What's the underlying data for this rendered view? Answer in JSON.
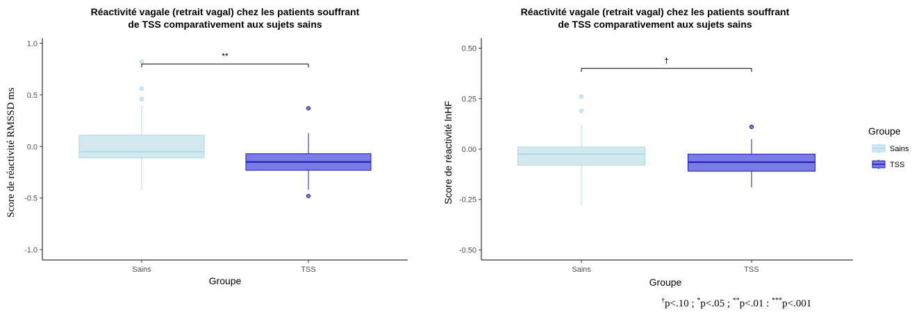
{
  "chart_data": [
    {
      "type": "box",
      "title_line1": "Réactivité vagale (retrait vagal) chez les patients souffrant",
      "title_line2": "de TSS comparativement aux sujets sains",
      "xlabel": "Groupe",
      "ylabel": "Score de réactivité RMSSD ms",
      "ylim": [
        -1.1,
        1.05
      ],
      "yticks": [
        -1.0,
        -0.5,
        0.0,
        0.5,
        1.0
      ],
      "ytick_labels": [
        "-1.0",
        "-0.5",
        "0.0",
        "0.5",
        "1.0"
      ],
      "categories": [
        "Sains",
        "TSS"
      ],
      "boxes": [
        {
          "group": "Sains",
          "whisker_low": -0.42,
          "q1": -0.11,
          "median": -0.05,
          "q3": 0.11,
          "whisker_high": 0.4,
          "outliers": [
            0.46,
            0.56,
            0.82
          ]
        },
        {
          "group": "TSS",
          "whisker_low": -0.42,
          "q1": -0.23,
          "median": -0.15,
          "q3": -0.07,
          "whisker_high": 0.13,
          "outliers": [
            0.37,
            -0.48
          ]
        }
      ],
      "significance": {
        "y": 0.8,
        "label": "**"
      }
    },
    {
      "type": "box",
      "title_line1": "Réactivité vagale (retrait vagal) chez les patients souffrant",
      "title_line2": "de TSS comparativement aux sujets sains",
      "xlabel": "Groupe",
      "ylabel": "Score de réactivité lnHF",
      "ylim": [
        -0.55,
        0.55
      ],
      "yticks": [
        -0.5,
        -0.25,
        0.0,
        0.25,
        0.5
      ],
      "ytick_labels": [
        "-0.50",
        "-0.25",
        "0.00",
        "0.25",
        "0.50"
      ],
      "categories": [
        "Sains",
        "TSS"
      ],
      "boxes": [
        {
          "group": "Sains",
          "whisker_low": -0.28,
          "q1": -0.08,
          "median": -0.025,
          "q3": 0.01,
          "whisker_high": 0.12,
          "outliers": [
            0.19,
            0.26
          ]
        },
        {
          "group": "TSS",
          "whisker_low": -0.19,
          "q1": -0.11,
          "median": -0.065,
          "q3": -0.025,
          "whisker_high": 0.05,
          "outliers": [
            0.11
          ]
        }
      ],
      "significance": {
        "y": 0.4,
        "label": "†"
      }
    }
  ],
  "legend": {
    "title": "Groupe",
    "items": [
      {
        "label": "Sains",
        "fill": "#d3e9f0",
        "stroke": "#add8e6"
      },
      {
        "label": "TSS",
        "fill": "#7b7be6",
        "stroke": "#1a1ab3"
      }
    ]
  },
  "colors": {
    "sains_fill": "#d3e9f0",
    "sains_stroke": "#add8e6",
    "tss_fill": "#7b7be6",
    "tss_stroke": "#1a1ab3"
  },
  "footnote": {
    "p1_sym": "†",
    "p1": "p<.10 ; ",
    "p2_sym": "*",
    "p2": "p<.05 ; ",
    "p3_sym": "**",
    "p3": "p<.01 : ",
    "p4_sym": "***",
    "p4": "p<.001"
  }
}
